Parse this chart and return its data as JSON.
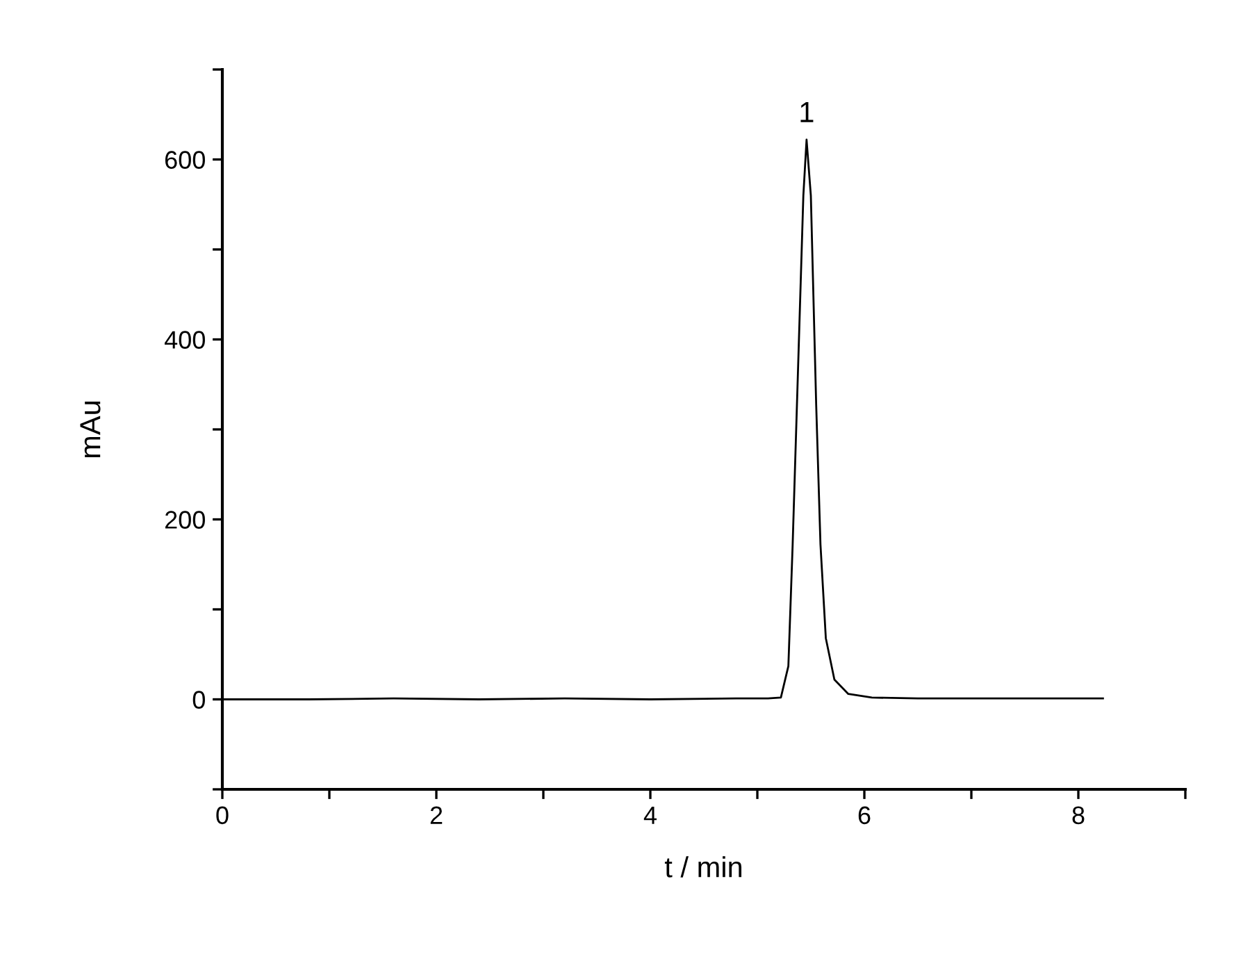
{
  "chart_data": {
    "type": "line",
    "xlabel": "t / min",
    "ylabel": "mAu",
    "x": [
      0,
      0.8,
      1.6,
      2.4,
      3.2,
      4.0,
      4.8,
      5.1,
      5.22,
      5.29,
      5.33,
      5.37,
      5.43,
      5.46,
      5.5,
      5.55,
      5.59,
      5.64,
      5.72,
      5.85,
      6.07,
      6.5,
      7.2,
      8.23
    ],
    "series": [
      {
        "color": "#000000",
        "values": [
          0,
          0,
          1,
          0,
          1,
          0,
          1,
          1,
          2,
          37,
          172,
          327,
          560,
          622,
          560,
          327,
          172,
          68,
          22,
          6,
          2,
          1,
          1,
          1
        ]
      }
    ],
    "xlim": [
      0,
      9
    ],
    "ylim": [
      -100,
      700
    ],
    "xticks": [
      0,
      {
        "value": 1,
        "label": null
      },
      2,
      {
        "value": 3,
        "label": null
      },
      4,
      {
        "value": 5,
        "label": null
      },
      6,
      {
        "value": 7,
        "label": null
      },
      8,
      {
        "value": 9,
        "label": null
      }
    ],
    "yticks": [
      {
        "value": -100,
        "label": null
      },
      0,
      {
        "value": 100,
        "label": null
      },
      200,
      {
        "value": 300,
        "label": null
      },
      400,
      {
        "value": 500,
        "label": null
      },
      600,
      {
        "value": 700,
        "label": null
      }
    ],
    "annotations": [
      {
        "text": "1",
        "x": 5.46,
        "y": 622
      }
    ],
    "grid": false,
    "legend": false,
    "marker": "none",
    "line_style": "solid"
  }
}
